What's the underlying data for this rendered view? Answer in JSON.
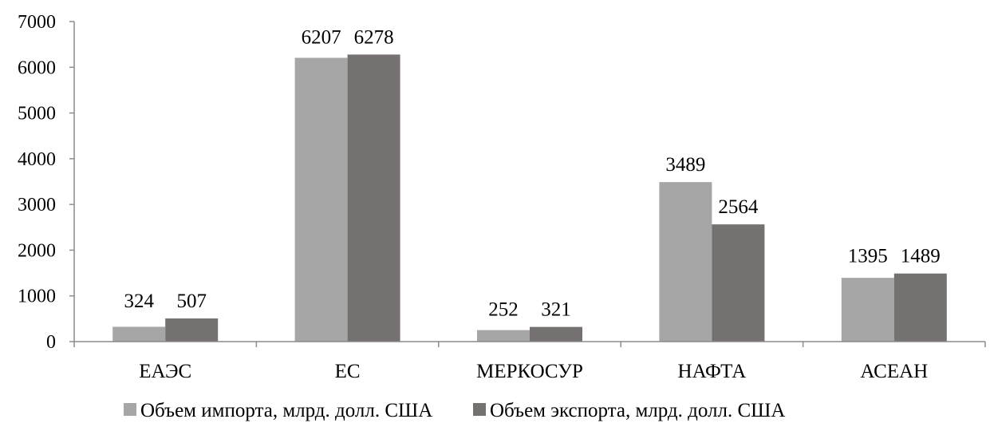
{
  "chart_data": {
    "type": "bar",
    "title": "",
    "xlabel": "",
    "ylabel": "",
    "categories": [
      "ЕАЭС",
      "ЕС",
      "МЕРКОСУР",
      "НАФТА",
      "АСЕАН"
    ],
    "series": [
      {
        "name": "Объем импорта, млрд. долл. США",
        "values": [
          324,
          6207,
          252,
          3489,
          1395
        ],
        "color": "#a6a6a6"
      },
      {
        "name": "Объем экспорта, млрд. долл. США",
        "values": [
          507,
          6278,
          321,
          2564,
          1489
        ],
        "color": "#767171"
      }
    ],
    "ylim": [
      0,
      7000
    ],
    "yticks": [
      0,
      1000,
      2000,
      3000,
      4000,
      5000,
      6000,
      7000
    ],
    "grid": false,
    "legend_position": "bottom"
  }
}
